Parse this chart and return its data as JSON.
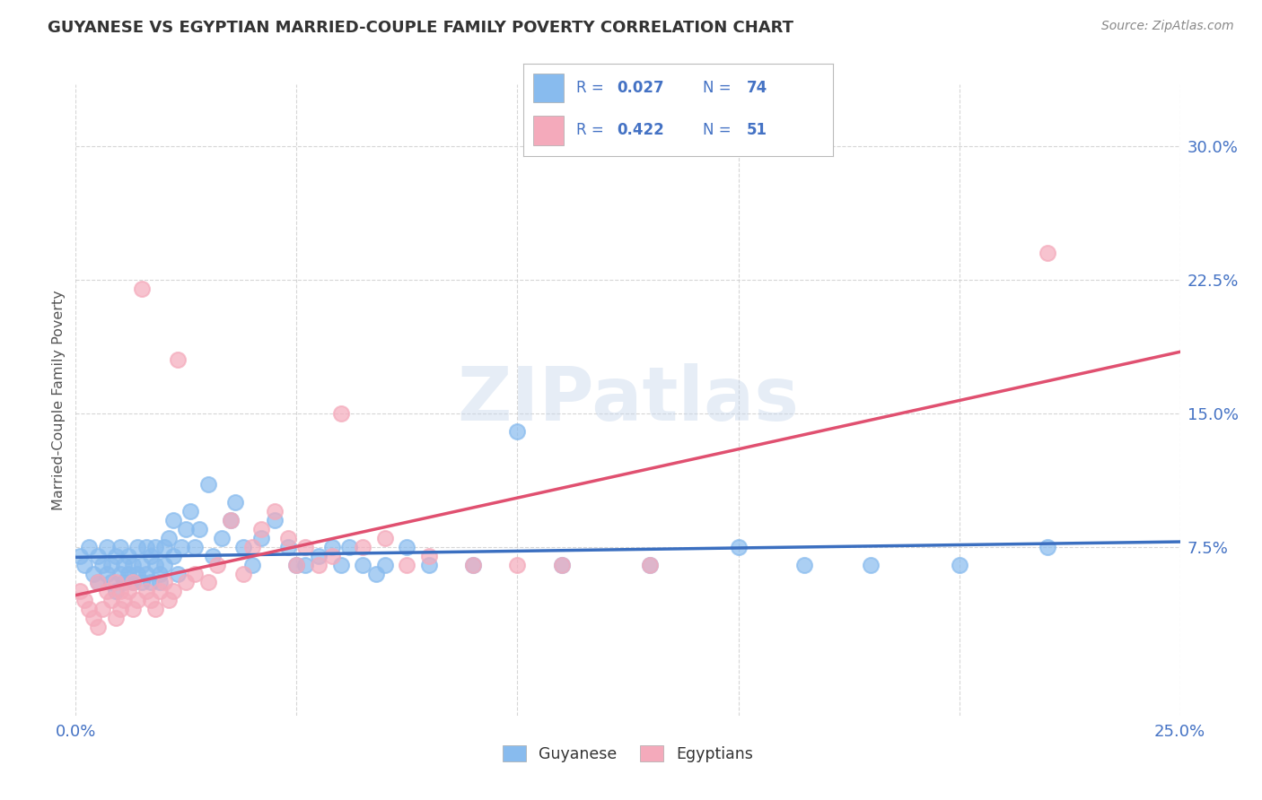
{
  "title": "GUYANESE VS EGYPTIAN MARRIED-COUPLE FAMILY POVERTY CORRELATION CHART",
  "source": "Source: ZipAtlas.com",
  "ylabel": "Married-Couple Family Poverty",
  "ytick_labels": [
    "7.5%",
    "15.0%",
    "22.5%",
    "30.0%"
  ],
  "ytick_vals": [
    0.075,
    0.15,
    0.225,
    0.3
  ],
  "xlim": [
    0.0,
    0.25
  ],
  "ylim": [
    -0.02,
    0.335
  ],
  "watermark": "ZIPatlas",
  "legend_r1": "0.027",
  "legend_n1": "74",
  "legend_r2": "0.422",
  "legend_n2": "51",
  "blue_scatter_color": "#88BBEE",
  "pink_scatter_color": "#F4AABB",
  "blue_line_color": "#3B6FC0",
  "pink_line_color": "#E05070",
  "legend_text_color": "#4472C4",
  "tick_color": "#4472C4",
  "background_color": "#FFFFFF",
  "grid_color": "#CCCCCC",
  "title_color": "#333333",
  "source_color": "#888888",
  "ylabel_color": "#555555",
  "guyanese_x": [
    0.001,
    0.002,
    0.003,
    0.004,
    0.005,
    0.005,
    0.006,
    0.007,
    0.007,
    0.008,
    0.008,
    0.009,
    0.009,
    0.01,
    0.01,
    0.011,
    0.011,
    0.012,
    0.012,
    0.013,
    0.013,
    0.014,
    0.014,
    0.015,
    0.015,
    0.016,
    0.016,
    0.017,
    0.017,
    0.018,
    0.018,
    0.019,
    0.019,
    0.02,
    0.02,
    0.021,
    0.022,
    0.022,
    0.023,
    0.024,
    0.025,
    0.026,
    0.027,
    0.028,
    0.03,
    0.031,
    0.033,
    0.035,
    0.036,
    0.038,
    0.04,
    0.042,
    0.045,
    0.048,
    0.05,
    0.052,
    0.055,
    0.058,
    0.06,
    0.062,
    0.065,
    0.068,
    0.07,
    0.075,
    0.08,
    0.09,
    0.1,
    0.11,
    0.13,
    0.15,
    0.165,
    0.18,
    0.2,
    0.22
  ],
  "guyanese_y": [
    0.07,
    0.065,
    0.075,
    0.06,
    0.055,
    0.07,
    0.065,
    0.06,
    0.075,
    0.055,
    0.065,
    0.07,
    0.05,
    0.06,
    0.075,
    0.065,
    0.055,
    0.06,
    0.07,
    0.055,
    0.065,
    0.075,
    0.06,
    0.065,
    0.055,
    0.075,
    0.06,
    0.07,
    0.055,
    0.065,
    0.075,
    0.06,
    0.055,
    0.065,
    0.075,
    0.08,
    0.09,
    0.07,
    0.06,
    0.075,
    0.085,
    0.095,
    0.075,
    0.085,
    0.11,
    0.07,
    0.08,
    0.09,
    0.1,
    0.075,
    0.065,
    0.08,
    0.09,
    0.075,
    0.065,
    0.065,
    0.07,
    0.075,
    0.065,
    0.075,
    0.065,
    0.06,
    0.065,
    0.075,
    0.065,
    0.065,
    0.14,
    0.065,
    0.065,
    0.075,
    0.065,
    0.065,
    0.065,
    0.075
  ],
  "egyptians_x": [
    0.001,
    0.002,
    0.003,
    0.004,
    0.005,
    0.005,
    0.006,
    0.007,
    0.008,
    0.009,
    0.009,
    0.01,
    0.01,
    0.011,
    0.012,
    0.013,
    0.013,
    0.014,
    0.015,
    0.016,
    0.017,
    0.018,
    0.019,
    0.02,
    0.021,
    0.022,
    0.023,
    0.025,
    0.027,
    0.03,
    0.032,
    0.035,
    0.038,
    0.04,
    0.042,
    0.045,
    0.048,
    0.05,
    0.052,
    0.055,
    0.058,
    0.06,
    0.065,
    0.07,
    0.075,
    0.08,
    0.09,
    0.1,
    0.11,
    0.13,
    0.22
  ],
  "egyptians_y": [
    0.05,
    0.045,
    0.04,
    0.035,
    0.03,
    0.055,
    0.04,
    0.05,
    0.045,
    0.035,
    0.055,
    0.05,
    0.04,
    0.045,
    0.05,
    0.055,
    0.04,
    0.045,
    0.22,
    0.05,
    0.045,
    0.04,
    0.05,
    0.055,
    0.045,
    0.05,
    0.18,
    0.055,
    0.06,
    0.055,
    0.065,
    0.09,
    0.06,
    0.075,
    0.085,
    0.095,
    0.08,
    0.065,
    0.075,
    0.065,
    0.07,
    0.15,
    0.075,
    0.08,
    0.065,
    0.07,
    0.065,
    0.065,
    0.065,
    0.065,
    0.24
  ]
}
